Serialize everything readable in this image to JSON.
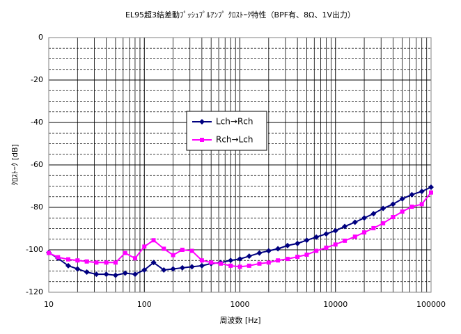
{
  "chart_data": {
    "type": "line",
    "title": "EL95超3結差動ﾌﾟｯｼｭﾌﾟﾙｱﾝﾌﾟ ｸﾛｽﾄｰｸ特性（BPF有、8Ω、1V出力）",
    "xlabel": "周波数 [Hz]",
    "ylabel": "ｸﾛｽﾄｰｸ [dB]",
    "x": [
      10,
      12.5,
      16,
      20,
      25,
      31.5,
      40,
      50,
      63,
      80,
      100,
      125,
      160,
      200,
      250,
      315,
      400,
      500,
      630,
      800,
      1000,
      1250,
      1600,
      2000,
      2500,
      3150,
      4000,
      5000,
      6300,
      8000,
      10000,
      12500,
      16000,
      20000,
      25000,
      31500,
      40000,
      50000,
      63000,
      80000,
      100000
    ],
    "series": [
      {
        "name": "Lch→Rch",
        "color": "#000080",
        "marker": "diamond",
        "values": [
          -101.3,
          -104,
          -107.5,
          -109,
          -110.5,
          -111.5,
          -111.5,
          -112,
          -111,
          -111.5,
          -109.5,
          -106,
          -109.5,
          -109,
          -108.5,
          -108,
          -107.5,
          -106.5,
          -106,
          -105,
          -104.3,
          -103,
          -101.5,
          -100.5,
          -99.5,
          -98,
          -97,
          -95.5,
          -94,
          -92.5,
          -91,
          -89,
          -87,
          -85,
          -83,
          -80.5,
          -78.5,
          -76,
          -74,
          -72.5,
          -70.5
        ]
      },
      {
        "name": "Rch→Lch",
        "color": "#ff00ff",
        "marker": "square",
        "values": [
          -101.5,
          -103.5,
          -104.5,
          -105,
          -105.5,
          -106,
          -106,
          -106,
          -101.5,
          -104,
          -98.5,
          -95.5,
          -99.5,
          -102.5,
          -100,
          -100.5,
          -105,
          -106,
          -106.5,
          -107.5,
          -108,
          -107.5,
          -106.5,
          -106,
          -105,
          -104.3,
          -103.3,
          -102.3,
          -100.5,
          -99,
          -97.5,
          -95.7,
          -93.8,
          -91.8,
          -89.8,
          -87.5,
          -84.6,
          -82,
          -79.7,
          -78.5,
          -73
        ]
      }
    ],
    "xscale": "log",
    "xlim": [
      10,
      100000
    ],
    "xticks": [
      10,
      100,
      1000,
      10000,
      100000
    ],
    "ylim": [
      -120,
      0
    ],
    "yticks": [
      -120,
      -100,
      -80,
      -60,
      -40,
      -20,
      0
    ],
    "grid": true,
    "minor_grid": true,
    "legend": "center"
  }
}
